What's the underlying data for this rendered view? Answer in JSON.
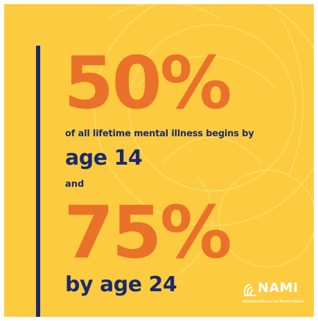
{
  "colors": {
    "background": "#FDCB3F",
    "accent_bar": "#1B2A6B",
    "stat_text": "#EA7129",
    "caption_text": "#1B2A6B",
    "logo": "#FFFFFF",
    "background_lines": "#FFE27A"
  },
  "stat1": {
    "value": "50%",
    "caption": "of all lifetime mental illness begins by",
    "detail": "age 14"
  },
  "connector": "and",
  "stat2": {
    "value": "75%",
    "detail": "by age 24"
  },
  "logo": {
    "icon": "nami-flame-icon",
    "wordmark": "NAMI",
    "tagline": "National Alliance on Mental Illness"
  }
}
